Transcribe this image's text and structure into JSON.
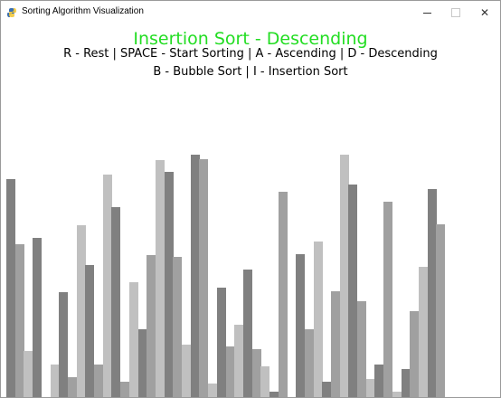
{
  "window": {
    "title": "Sorting Algorithm Visualization"
  },
  "heading": "Insertion Sort - Descending",
  "controls": {
    "line1": "R - Rest | SPACE - Start Sorting | A - Ascending | D - Descending",
    "line2": "B - Bubble Sort | I - Insertion Sort"
  },
  "colors": {
    "heading": "#22dd22",
    "bar_shades": [
      "#808080",
      "#a0a0a0",
      "#c0c0c0"
    ]
  },
  "bars": [
    {
      "value": 241,
      "shade": 0
    },
    {
      "value": 169,
      "shade": 1
    },
    {
      "value": 51,
      "shade": 2
    },
    {
      "value": 176,
      "shade": 0
    },
    {
      "value": 0,
      "shade": 1
    },
    {
      "value": 36,
      "shade": 2
    },
    {
      "value": 116,
      "shade": 0
    },
    {
      "value": 22,
      "shade": 1
    },
    {
      "value": 190,
      "shade": 2
    },
    {
      "value": 146,
      "shade": 0
    },
    {
      "value": 36,
      "shade": 1
    },
    {
      "value": 246,
      "shade": 2
    },
    {
      "value": 210,
      "shade": 0
    },
    {
      "value": 17,
      "shade": 1
    },
    {
      "value": 127,
      "shade": 2
    },
    {
      "value": 75,
      "shade": 0
    },
    {
      "value": 157,
      "shade": 1
    },
    {
      "value": 262,
      "shade": 2
    },
    {
      "value": 249,
      "shade": 0
    },
    {
      "value": 155,
      "shade": 1
    },
    {
      "value": 58,
      "shade": 2
    },
    {
      "value": 268,
      "shade": 0
    },
    {
      "value": 263,
      "shade": 1
    },
    {
      "value": 15,
      "shade": 2
    },
    {
      "value": 121,
      "shade": 0
    },
    {
      "value": 56,
      "shade": 1
    },
    {
      "value": 80,
      "shade": 2
    },
    {
      "value": 141,
      "shade": 0
    },
    {
      "value": 53,
      "shade": 1
    },
    {
      "value": 34,
      "shade": 2
    },
    {
      "value": 6,
      "shade": 0
    },
    {
      "value": 227,
      "shade": 1
    },
    {
      "value": 0,
      "shade": 2
    },
    {
      "value": 158,
      "shade": 0
    },
    {
      "value": 75,
      "shade": 1
    },
    {
      "value": 172,
      "shade": 2
    },
    {
      "value": 17,
      "shade": 0
    },
    {
      "value": 117,
      "shade": 1
    },
    {
      "value": 268,
      "shade": 2
    },
    {
      "value": 235,
      "shade": 0
    },
    {
      "value": 106,
      "shade": 1
    },
    {
      "value": 20,
      "shade": 2
    },
    {
      "value": 36,
      "shade": 0
    },
    {
      "value": 216,
      "shade": 1
    },
    {
      "value": 6,
      "shade": 2
    },
    {
      "value": 31,
      "shade": 0
    },
    {
      "value": 95,
      "shade": 1
    },
    {
      "value": 144,
      "shade": 2
    },
    {
      "value": 230,
      "shade": 0
    },
    {
      "value": 191,
      "shade": 1
    }
  ],
  "value_max": 270
}
